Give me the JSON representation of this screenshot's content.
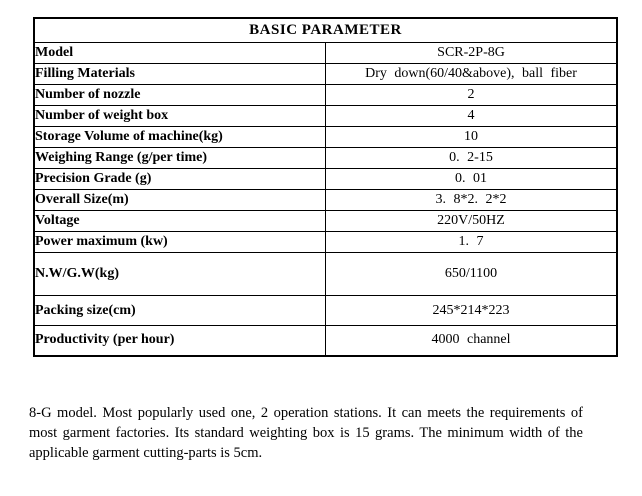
{
  "colors": {
    "background": "#ffffff",
    "text": "#000000",
    "table_border": "#000000"
  },
  "table": {
    "title": "BASIC PARAMETER",
    "rows": [
      {
        "label": "Model",
        "value": "SCR-2P-8G"
      },
      {
        "label": "Filling Materials",
        "value": "Dry down(60/40&above), ball fiber"
      },
      {
        "label": "Number of nozzle",
        "value": "2"
      },
      {
        "label": "Number of weight box",
        "value": "4"
      },
      {
        "label": "Storage Volume of machine(kg)",
        "value": "10"
      },
      {
        "label": "Weighing Range (g/per time)",
        "value": "0. 2-15"
      },
      {
        "label": "Precision Grade (g)",
        "value": "0. 01"
      },
      {
        "label": "Overall Size(m)",
        "value": "3. 8*2. 2*2"
      },
      {
        "label": "Voltage",
        "value": "220V/50HZ"
      },
      {
        "label": "Power maximum (kw)",
        "value": "1. 7"
      },
      {
        "label": "N.W/G.W(kg)",
        "value": "650/1100"
      },
      {
        "label": "Packing size(cm)",
        "value": "245*214*223"
      },
      {
        "label": "Productivity (per hour)",
        "value": "4000 channel"
      }
    ]
  },
  "paragraph": "8-G model. Most popularly used one, 2 operation stations. It can meets the requirements of most garment factories. Its standard weighting box is 15 grams. The minimum width of the applicable garment cutting-parts is 5cm."
}
